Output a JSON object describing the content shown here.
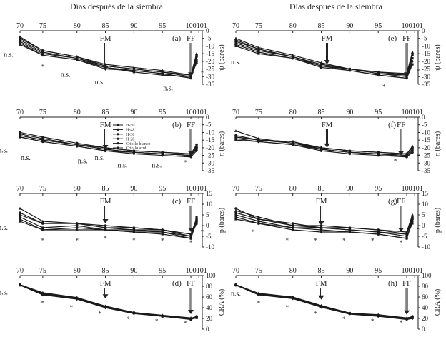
{
  "figure": {
    "x_title": "Días después de la siembra",
    "legend": [
      "H-50",
      "H-48",
      "H-30",
      "H-28",
      "Criollo blanco",
      "Criollo azul"
    ],
    "colors": {
      "axis": "#222222",
      "line": "#1a1a1a",
      "fill": "#1a1a1a"
    }
  },
  "chart_data": [
    {
      "type": "line",
      "panel": "(a)",
      "ylabel": "ψ (bares)",
      "xlim": [
        70,
        101
      ],
      "ylim": [
        -35,
        0
      ],
      "x_ticks": [
        "70",
        "75",
        "80",
        "85",
        "90",
        "95",
        "100",
        "101"
      ],
      "y_ticks": [
        "0",
        "-5",
        "-10",
        "-15",
        "-20",
        "-25",
        "-30",
        "-35"
      ],
      "x": [
        70,
        74,
        80,
        85,
        90,
        95,
        100,
        101
      ],
      "series": [
        {
          "values": [
            -4,
            -13,
            -17,
            -22,
            -24,
            -26,
            -29,
            -15
          ]
        },
        {
          "values": [
            -6,
            -14,
            -18,
            -23,
            -25,
            -27,
            -30,
            -17
          ]
        },
        {
          "values": [
            -7,
            -15,
            -18,
            -24,
            -26,
            -28,
            -31,
            -19
          ]
        },
        {
          "values": [
            -8,
            -16,
            -19,
            -25,
            -26,
            -28,
            -31,
            -20
          ]
        },
        {
          "values": [
            -5,
            -13,
            -17,
            -23,
            -25,
            -27,
            -29,
            -16
          ]
        },
        {
          "values": [
            -9,
            -16,
            -19,
            -24,
            -27,
            -29,
            -30,
            -21
          ]
        }
      ],
      "annotations": [
        {
          "text": "FM",
          "x": 85,
          "arrow_to": -26
        },
        {
          "text": "FF",
          "x": 100,
          "arrow_to": -30
        },
        {
          "text": "n.s.",
          "x": 68,
          "y": -17
        },
        {
          "text": "*",
          "x": 74,
          "y": -25
        },
        {
          "text": "n.s.",
          "x": 78,
          "y": -30
        },
        {
          "text": "n.s.",
          "x": 84,
          "y": -35
        },
        {
          "text": "n.s.",
          "x": 96,
          "y": -39
        },
        {
          "text": "*",
          "x": 102,
          "y": -29
        }
      ]
    },
    {
      "type": "line",
      "panel": "(e)",
      "ylabel": "ψ (bares)",
      "xlim": [
        70,
        101
      ],
      "ylim": [
        -35,
        0
      ],
      "x_ticks": [
        "70",
        "75",
        "80",
        "85",
        "90",
        "95",
        "100",
        "101"
      ],
      "y_ticks": [
        "0",
        "-5",
        "-10",
        "-15",
        "-20",
        "-25",
        "-30",
        "-35"
      ],
      "x": [
        70,
        74,
        80,
        85,
        90,
        95,
        100,
        101
      ],
      "series": [
        {
          "values": [
            -5,
            -11,
            -16,
            -21,
            -25,
            -27,
            -28,
            -14
          ]
        },
        {
          "values": [
            -6,
            -12,
            -17,
            -22,
            -25,
            -28,
            -29,
            -16
          ]
        },
        {
          "values": [
            -8,
            -13,
            -17,
            -23,
            -25,
            -28,
            -30,
            -18
          ]
        },
        {
          "values": [
            -9,
            -14,
            -18,
            -23,
            -26,
            -29,
            -31,
            -20
          ]
        },
        {
          "values": [
            -7,
            -12,
            -17,
            -22,
            -25,
            -27,
            -29,
            -15
          ]
        },
        {
          "values": [
            -10,
            -15,
            -18,
            -24,
            -26,
            -29,
            -31,
            -22
          ]
        }
      ],
      "annotations": [
        {
          "text": "FM",
          "x": 86,
          "arrow_to": -22
        },
        {
          "text": "FF",
          "x": 100,
          "arrow_to": -30
        },
        {
          "text": "n.s.",
          "x": 70,
          "y": -22
        },
        {
          "text": "*",
          "x": 96,
          "y": -38
        },
        {
          "text": "*",
          "x": 102,
          "y": -28
        }
      ]
    },
    {
      "type": "line",
      "panel": "(b)",
      "ylabel": "π (bares)",
      "xlim": [
        70,
        101
      ],
      "ylim": [
        -35,
        0
      ],
      "x_ticks": [
        "70",
        "75",
        "80",
        "85",
        "90",
        "95",
        "100",
        "101"
      ],
      "y_ticks": [
        "0",
        "-5",
        "-10",
        "-15",
        "-20",
        "-25",
        "-30",
        "-35"
      ],
      "x": [
        70,
        74,
        80,
        85,
        90,
        95,
        100,
        101
      ],
      "series": [
        {
          "values": [
            -11,
            -14,
            -18,
            -20,
            -22,
            -23,
            -24,
            -19
          ]
        },
        {
          "values": [
            -12,
            -15,
            -18,
            -21,
            -23,
            -24,
            -25,
            -20
          ]
        },
        {
          "values": [
            -13,
            -16,
            -19,
            -22,
            -23,
            -24,
            -25,
            -21
          ]
        },
        {
          "values": [
            -13,
            -16,
            -19,
            -22,
            -24,
            -25,
            -26,
            -22
          ]
        },
        {
          "values": [
            -10,
            -13,
            -17,
            -20,
            -22,
            -23,
            -24,
            -18
          ]
        },
        {
          "values": [
            -12,
            -15,
            -18,
            -21,
            -23,
            -24,
            -25,
            -20
          ]
        }
      ],
      "annotations": [
        {
          "text": "FM",
          "x": 85,
          "arrow_to": -21
        },
        {
          "text": "FF",
          "x": 100,
          "arrow_to": -25
        },
        {
          "text": "n.s.",
          "x": 67,
          "y": -23
        },
        {
          "text": "n.s.",
          "x": 71,
          "y": -28
        },
        {
          "text": "n.s.",
          "x": 81,
          "y": -30
        },
        {
          "text": "n.s.",
          "x": 88,
          "y": -33
        },
        {
          "text": "n.s.",
          "x": 94,
          "y": -33
        },
        {
          "text": "*",
          "x": 99,
          "y": -31
        },
        {
          "text": "n.s.",
          "x": 84,
          "y": -28
        }
      ]
    },
    {
      "type": "line",
      "panel": "(f)",
      "ylabel": "π (bares)",
      "xlim": [
        70,
        101
      ],
      "ylim": [
        -35,
        0
      ],
      "x_ticks": [
        "70",
        "75",
        "80",
        "85",
        "90",
        "95",
        "100",
        "101"
      ],
      "y_ticks": [
        "0",
        "-5",
        "-10",
        "-15",
        "-20",
        "-25",
        "-30",
        "-35"
      ],
      "x": [
        70,
        74,
        80,
        85,
        90,
        95,
        100,
        101
      ],
      "series": [
        {
          "values": [
            -9,
            -14,
            -17,
            -20,
            -22,
            -23,
            -24,
            -19
          ]
        },
        {
          "values": [
            -12,
            -15,
            -16,
            -20,
            -22,
            -23,
            -24,
            -20
          ]
        },
        {
          "values": [
            -13,
            -15,
            -16,
            -21,
            -23,
            -24,
            -25,
            -21
          ]
        },
        {
          "values": [
            -14,
            -16,
            -18,
            -21,
            -23,
            -24,
            -26,
            -22
          ]
        },
        {
          "values": [
            -15,
            -16,
            -18,
            -22,
            -24,
            -25,
            -26,
            -23
          ]
        },
        {
          "values": [
            -13,
            -15,
            -17,
            -21,
            -23,
            -24,
            -25,
            -21
          ]
        }
      ],
      "annotations": [
        {
          "text": "FM",
          "x": 86,
          "arrow_to": -20
        },
        {
          "text": "FF",
          "x": 99,
          "arrow_to": -25
        },
        {
          "text": "*",
          "x": 98,
          "y": -30
        },
        {
          "text": "*",
          "x": 102,
          "y": -27
        }
      ]
    },
    {
      "type": "line",
      "panel": "(c)",
      "ylabel": "p (bares)",
      "xlim": [
        70,
        101
      ],
      "ylim": [
        -10,
        15
      ],
      "x_ticks": [
        "70",
        "75",
        "80",
        "85",
        "90",
        "95",
        "100",
        "101"
      ],
      "y_ticks": [
        "15",
        "10",
        "5",
        "0",
        "-5",
        "-10"
      ],
      "x": [
        70,
        74,
        80,
        85,
        90,
        95,
        100,
        101
      ],
      "series": [
        {
          "values": [
            8,
            2,
            1,
            -1,
            -1,
            -2,
            -4,
            3
          ]
        },
        {
          "values": [
            5,
            1,
            1,
            -1,
            -2,
            -2,
            -5,
            2
          ]
        },
        {
          "values": [
            4,
            -1,
            0,
            -2,
            -2,
            -3,
            -5,
            1
          ]
        },
        {
          "values": [
            2,
            -2,
            -2,
            -2,
            -3,
            -3,
            -6,
            4
          ]
        },
        {
          "values": [
            6,
            1,
            1,
            0,
            -1,
            -2,
            -4,
            3
          ]
        },
        {
          "values": [
            3,
            -2,
            -1,
            -2,
            -3,
            -4,
            -6,
            2
          ]
        }
      ],
      "annotations": [
        {
          "text": "FM",
          "x": 85,
          "arrow_to": 1
        },
        {
          "text": "FF",
          "x": 100,
          "arrow_to": -3
        },
        {
          "text": "n.s.",
          "x": 67,
          "y": -2
        },
        {
          "text": "*",
          "x": 74,
          "y": -8
        },
        {
          "text": "*",
          "x": 80,
          "y": -8
        },
        {
          "text": "*",
          "x": 85,
          "y": -7
        },
        {
          "text": "*",
          "x": 90,
          "y": -8
        },
        {
          "text": "*",
          "x": 95,
          "y": -8
        },
        {
          "text": "*",
          "x": 100,
          "y": -9
        },
        {
          "text": "*",
          "x": 102,
          "y": -4
        }
      ]
    },
    {
      "type": "line",
      "panel": "(g)",
      "ylabel": "p (bares)",
      "xlim": [
        70,
        101
      ],
      "ylim": [
        -10,
        15
      ],
      "x_ticks": [
        "70",
        "75",
        "80",
        "85",
        "90",
        "95",
        "100",
        "101"
      ],
      "y_ticks": [
        "15",
        "10",
        "5",
        "0",
        "-5",
        "-10"
      ],
      "x": [
        70,
        74,
        80,
        85,
        90,
        95,
        100,
        101
      ],
      "series": [
        {
          "values": [
            7,
            4,
            0,
            -1,
            -1,
            -2,
            -3,
            5
          ]
        },
        {
          "values": [
            6,
            3,
            1,
            -1,
            -2,
            -3,
            -4,
            3
          ]
        },
        {
          "values": [
            5,
            2,
            -1,
            -1,
            -2,
            -3,
            -5,
            1
          ]
        },
        {
          "values": [
            4,
            1,
            -2,
            -3,
            -3,
            -4,
            -6,
            2
          ]
        },
        {
          "values": [
            8,
            3,
            0,
            0,
            -1,
            -2,
            -4,
            4
          ]
        },
        {
          "values": [
            3,
            1,
            -1,
            -2,
            -3,
            -4,
            -6,
            3
          ]
        }
      ],
      "annotations": [
        {
          "text": "FM",
          "x": 85,
          "arrow_to": 0
        },
        {
          "text": "FF",
          "x": 99,
          "arrow_to": -3
        },
        {
          "text": "*",
          "x": 73,
          "y": -4
        },
        {
          "text": "*",
          "x": 79,
          "y": -8
        },
        {
          "text": "*",
          "x": 84,
          "y": -8
        },
        {
          "text": "*",
          "x": 89,
          "y": -8
        },
        {
          "text": "*",
          "x": 94,
          "y": -8
        },
        {
          "text": "*",
          "x": 99,
          "y": -9
        },
        {
          "text": "*",
          "x": 102,
          "y": -3
        }
      ]
    },
    {
      "type": "line",
      "panel": "(d)",
      "ylabel": "CRA (%)",
      "xlim": [
        70,
        101
      ],
      "ylim": [
        0,
        100
      ],
      "x_ticks": [
        "70",
        "75",
        "80",
        "85",
        "90",
        "95",
        "100",
        "101"
      ],
      "y_ticks": [
        "100",
        "80",
        "60",
        "40",
        "20",
        "0"
      ],
      "x": [
        70,
        74,
        80,
        85,
        90,
        95,
        100,
        101
      ],
      "series": [
        {
          "values": [
            83,
            68,
            59,
            43,
            31,
            26,
            21,
            22
          ]
        },
        {
          "values": [
            83,
            66,
            58,
            42,
            30,
            25,
            20,
            23
          ]
        },
        {
          "values": [
            82,
            65,
            57,
            41,
            30,
            24,
            19,
            21
          ]
        },
        {
          "values": [
            82,
            64,
            56,
            40,
            29,
            24,
            19,
            22
          ]
        },
        {
          "values": [
            83,
            67,
            58,
            42,
            31,
            25,
            20,
            24
          ]
        },
        {
          "values": [
            82,
            65,
            57,
            41,
            30,
            24,
            18,
            22
          ]
        }
      ],
      "annotations": [
        {
          "text": "FM",
          "x": 85,
          "arrow_to": 57
        },
        {
          "text": "FF",
          "x": 100,
          "arrow_to": 28
        },
        {
          "text": "n.s.",
          "x": 67,
          "y": 65
        },
        {
          "text": "*",
          "x": 74,
          "y": 45
        },
        {
          "text": "*",
          "x": 79,
          "y": 37
        },
        {
          "text": "*",
          "x": 84,
          "y": 25
        },
        {
          "text": "*",
          "x": 89,
          "y": 15
        },
        {
          "text": "*",
          "x": 94,
          "y": 11
        },
        {
          "text": "*",
          "x": 99,
          "y": 7
        }
      ]
    },
    {
      "type": "line",
      "panel": "(h)",
      "ylabel": "CRA (%)",
      "xlim": [
        70,
        101
      ],
      "ylim": [
        0,
        100
      ],
      "x_ticks": [
        "70",
        "75",
        "80",
        "85",
        "90",
        "95",
        "100",
        "101"
      ],
      "y_ticks": [
        "100",
        "80",
        "60",
        "40",
        "20",
        "0"
      ],
      "x": [
        70,
        74,
        80,
        85,
        90,
        95,
        100,
        101
      ],
      "series": [
        {
          "values": [
            83,
            67,
            60,
            44,
            30,
            27,
            21,
            23
          ]
        },
        {
          "values": [
            83,
            66,
            59,
            43,
            30,
            26,
            20,
            22
          ]
        },
        {
          "values": [
            82,
            65,
            58,
            42,
            29,
            25,
            19,
            21
          ]
        },
        {
          "values": [
            82,
            64,
            57,
            41,
            28,
            24,
            18,
            20
          ]
        },
        {
          "values": [
            83,
            66,
            59,
            43,
            30,
            26,
            20,
            24
          ]
        },
        {
          "values": [
            82,
            65,
            58,
            42,
            29,
            25,
            19,
            22
          ]
        }
      ],
      "annotations": [
        {
          "text": "FM",
          "x": 85,
          "arrow_to": 55
        },
        {
          "text": "FF",
          "x": 100,
          "arrow_to": 27
        },
        {
          "text": "n.s.",
          "x": 70,
          "y": 62
        },
        {
          "text": "*",
          "x": 74,
          "y": 45
        },
        {
          "text": "*",
          "x": 79,
          "y": 37
        },
        {
          "text": "*",
          "x": 84,
          "y": 25
        },
        {
          "text": "*",
          "x": 89,
          "y": 15
        },
        {
          "text": "*",
          "x": 94,
          "y": 11
        },
        {
          "text": "*",
          "x": 99,
          "y": 8
        }
      ]
    }
  ]
}
